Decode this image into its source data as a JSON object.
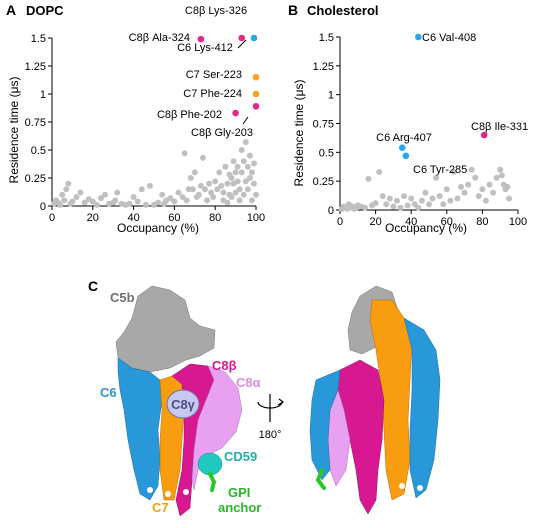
{
  "colors": {
    "grey": "#c0c0c0",
    "magenta": "#e0288c",
    "orange": "#f8a020",
    "blue": "#28a8e8",
    "c5b": "#a8a8a8",
    "c6": "#2898d8",
    "c7": "#f89c10",
    "c8b": "#d81890",
    "c8a": "#e8a0f0",
    "c8g": "#c8c8f0",
    "cd59": "#20c8c0",
    "gpi": "#28c828"
  },
  "panels": {
    "a": {
      "letter": "A",
      "title": "DOPC"
    },
    "b": {
      "letter": "B",
      "title": "Cholesterol"
    },
    "c": {
      "letter": "C"
    }
  },
  "chart_data": [
    {
      "type": "scatter",
      "title": "DOPC",
      "xlabel": "Occupancy (%)",
      "ylabel": "Residence time (μs)",
      "xlim": [
        0,
        100
      ],
      "ylim": [
        0,
        1.5
      ],
      "xticks": [
        "0",
        "20",
        "40",
        "60",
        "80",
        "100"
      ],
      "yticks": [
        "0",
        "0.25",
        "0.5",
        "0.75",
        "1",
        "1.25",
        "1.5"
      ],
      "grid": false,
      "background_points": [
        [
          1,
          0.02
        ],
        [
          2,
          0.05
        ],
        [
          3,
          0.03
        ],
        [
          4,
          0.01
        ],
        [
          5,
          0.1
        ],
        [
          6,
          0.05
        ],
        [
          7,
          0.15
        ],
        [
          8,
          0.2
        ],
        [
          9,
          0.02
        ],
        [
          10,
          0.04
        ],
        [
          12,
          0.08
        ],
        [
          14,
          0.12
        ],
        [
          16,
          0.03
        ],
        [
          18,
          0.06
        ],
        [
          20,
          0.04
        ],
        [
          22,
          0.01
        ],
        [
          24,
          0.07
        ],
        [
          26,
          0.1
        ],
        [
          28,
          0.02
        ],
        [
          30,
          0.03
        ],
        [
          31,
          0.05
        ],
        [
          32,
          0.12
        ],
        [
          34,
          0.02
        ],
        [
          36,
          0.01
        ],
        [
          38,
          0.02
        ],
        [
          40,
          0.08
        ],
        [
          42,
          0.04
        ],
        [
          44,
          0.15
        ],
        [
          46,
          0.01
        ],
        [
          48,
          0.18
        ],
        [
          50,
          0.01
        ],
        [
          52,
          0.03
        ],
        [
          54,
          0.1
        ],
        [
          55,
          0.02
        ],
        [
          56,
          0.05
        ],
        [
          58,
          0.07
        ],
        [
          60,
          0.04
        ],
        [
          62,
          0.12
        ],
        [
          64,
          0.08
        ],
        [
          65,
          0.47
        ],
        [
          66,
          0.05
        ],
        [
          67,
          0.15
        ],
        [
          68,
          0.25
        ],
        [
          69,
          0.15
        ],
        [
          70,
          0.3
        ],
        [
          71,
          0.08
        ],
        [
          72,
          0.1
        ],
        [
          73,
          0.18
        ],
        [
          74,
          0.43
        ],
        [
          75,
          0.15
        ],
        [
          76,
          0.05
        ],
        [
          77,
          0.2
        ],
        [
          78,
          0.12
        ],
        [
          79,
          0.08
        ],
        [
          80,
          0.22
        ],
        [
          81,
          0.15
        ],
        [
          82,
          0.3
        ],
        [
          83,
          0.18
        ],
        [
          84,
          0.12
        ],
        [
          85,
          0.35
        ],
        [
          86,
          0.2
        ],
        [
          87,
          0.1
        ],
        [
          88,
          0.25
        ],
        [
          89,
          0.4
        ],
        [
          90,
          0.3
        ],
        [
          91,
          0.22
        ],
        [
          92,
          0.15
        ],
        [
          93,
          0.5
        ],
        [
          94,
          0.4
        ],
        [
          95,
          0.57
        ],
        [
          96,
          0.35
        ],
        [
          97,
          0.45
        ],
        [
          98,
          0.3
        ],
        [
          99,
          0.2
        ],
        [
          100,
          0.1
        ],
        [
          98,
          0.05
        ],
        [
          96,
          0.15
        ],
        [
          94,
          0.1
        ],
        [
          92,
          0.05
        ],
        [
          90,
          0.12
        ],
        [
          88,
          0.08
        ],
        [
          86,
          0.03
        ],
        [
          84,
          0.05
        ],
        [
          99,
          0.38
        ],
        [
          97,
          0.25
        ],
        [
          95,
          0.22
        ],
        [
          93,
          0.3
        ],
        [
          91,
          0.35
        ],
        [
          89,
          0.2
        ],
        [
          87,
          0.28
        ]
      ],
      "highlighted": [
        {
          "label": "C8β Lys-326",
          "x": 93,
          "y": 1.5,
          "color": "magenta"
        },
        {
          "label": "C6 Lys-412",
          "x": 99,
          "y": 1.5,
          "color": "blue"
        },
        {
          "label": "C8β Ala-324",
          "x": 73,
          "y": 1.49,
          "color": "magenta"
        },
        {
          "label": "C7 Ser-223",
          "x": 100,
          "y": 1.15,
          "color": "orange"
        },
        {
          "label": "C7 Phe-224",
          "x": 100,
          "y": 1.0,
          "color": "orange"
        },
        {
          "label": "C8β Phe-202",
          "x": 90,
          "y": 0.83,
          "color": "magenta"
        },
        {
          "label": "C8β Gly-203",
          "x": 100,
          "y": 0.89,
          "color": "magenta"
        }
      ]
    },
    {
      "type": "scatter",
      "title": "Cholesterol",
      "xlabel": "Occupancy (%)",
      "ylabel": "Residence time (μs)",
      "xlim": [
        0,
        100
      ],
      "ylim": [
        0,
        1.5
      ],
      "xticks": [
        "0",
        "20",
        "40",
        "60",
        "80",
        "100"
      ],
      "yticks": [
        "0",
        "0.25",
        "0.5",
        "0.75",
        "1",
        "1.25",
        "1.5"
      ],
      "grid": false,
      "background_points": [
        [
          1,
          0.01
        ],
        [
          2,
          0.03
        ],
        [
          3,
          0.02
        ],
        [
          4,
          0.01
        ],
        [
          5,
          0.05
        ],
        [
          6,
          0.02
        ],
        [
          7,
          0.03
        ],
        [
          8,
          0.01
        ],
        [
          9,
          0.02
        ],
        [
          10,
          0.04
        ],
        [
          12,
          0.03
        ],
        [
          14,
          0.02
        ],
        [
          16,
          0.27
        ],
        [
          18,
          0.04
        ],
        [
          20,
          0.06
        ],
        [
          22,
          0.33
        ],
        [
          24,
          0.12
        ],
        [
          26,
          0.05
        ],
        [
          28,
          0.1
        ],
        [
          30,
          0.03
        ],
        [
          32,
          0.08
        ],
        [
          34,
          0.02
        ],
        [
          36,
          0.12
        ],
        [
          38,
          0.04
        ],
        [
          40,
          0.1
        ],
        [
          42,
          0.05
        ],
        [
          44,
          0.02
        ],
        [
          46,
          0.08
        ],
        [
          48,
          0.15
        ],
        [
          50,
          0.05
        ],
        [
          52,
          0.1
        ],
        [
          54,
          0.28
        ],
        [
          56,
          0.12
        ],
        [
          58,
          0.05
        ],
        [
          60,
          0.18
        ],
        [
          62,
          0.08
        ],
        [
          64,
          0.33
        ],
        [
          66,
          0.1
        ],
        [
          68,
          0.2
        ],
        [
          70,
          0.15
        ],
        [
          72,
          0.22
        ],
        [
          74,
          0.35
        ],
        [
          76,
          0.28
        ],
        [
          78,
          0.12
        ],
        [
          80,
          0.18
        ],
        [
          82,
          0.08
        ],
        [
          84,
          0.22
        ],
        [
          86,
          0.15
        ],
        [
          88,
          0.28
        ],
        [
          90,
          0.35
        ],
        [
          91,
          0.3
        ],
        [
          92,
          0.22
        ],
        [
          93,
          0.18
        ],
        [
          94,
          0.2
        ],
        [
          95,
          0.1
        ]
      ],
      "highlighted": [
        {
          "label": "C6 Val-408",
          "x": 44,
          "y": 1.5,
          "color": "blue"
        },
        {
          "label": "C6 Arg-407",
          "x": 35,
          "y": 0.54,
          "color": "blue"
        },
        {
          "label": "C6 Tyr-285",
          "x": 37,
          "y": 0.47,
          "color": "blue"
        },
        {
          "label": "C8β Ile-331",
          "x": 81,
          "y": 0.65,
          "color": "magenta"
        }
      ]
    }
  ],
  "structure": {
    "labels": {
      "c5b": "C5b",
      "c6": "C6",
      "c7": "C7",
      "c8b": "C8β",
      "c8a": "C8α",
      "c8g": "C8γ",
      "cd59": "CD59",
      "gpi_line1": "GPI",
      "gpi_line2": "anchor",
      "rotation": "180°"
    }
  }
}
